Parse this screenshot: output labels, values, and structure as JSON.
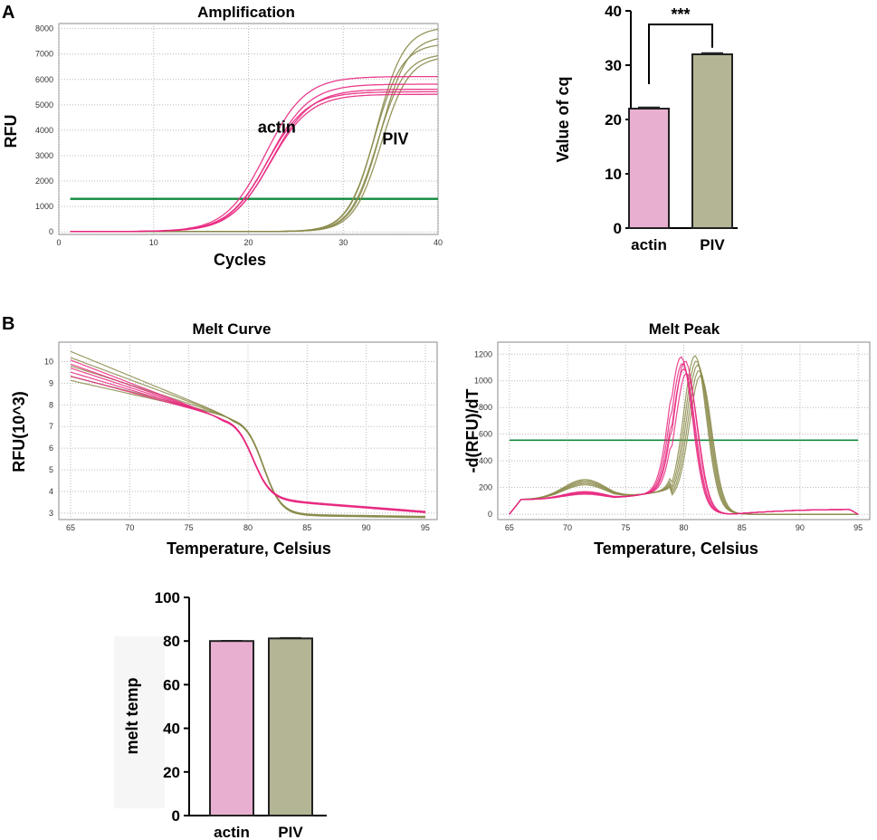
{
  "panels": {
    "a": "A",
    "b": "B"
  },
  "colors": {
    "actin_line": "#e8277f",
    "piv_line": "#8a8a4a",
    "threshold": "#0f8a3c",
    "actin_bar": "#e9afd1",
    "piv_bar": "#b4b595",
    "grid": "#b8b8b8"
  },
  "chart_data": [
    {
      "id": "amplification",
      "type": "line",
      "title": "Amplification",
      "xlabel": "Cycles",
      "ylabel": "RFU",
      "xlim": [
        0,
        40
      ],
      "ylim": [
        -100,
        8200
      ],
      "xticks": [
        0,
        10,
        20,
        30,
        40
      ],
      "yticks": [
        0,
        1000,
        2000,
        3000,
        4000,
        5000,
        6000,
        7000,
        8000
      ],
      "threshold": 1300,
      "annotations": [
        {
          "text": "actin",
          "x": 23,
          "y": 3900
        },
        {
          "text": "PIV",
          "x": 35.5,
          "y": 3450
        }
      ],
      "series": [
        {
          "name": "actin",
          "color": "#e8277f",
          "curves": [
            {
              "midpoint": 22.3,
              "plateau": 5400
            },
            {
              "midpoint": 22.0,
              "plateau": 5500
            },
            {
              "midpoint": 22.4,
              "plateau": 5600
            },
            {
              "midpoint": 22.2,
              "plateau": 5800
            },
            {
              "midpoint": 21.8,
              "plateau": 6100
            }
          ]
        },
        {
          "name": "PIV",
          "color": "#8a8a4a",
          "curves": [
            {
              "midpoint": 33.6,
              "plateau": 7000
            },
            {
              "midpoint": 33.3,
              "plateau": 7400
            },
            {
              "midpoint": 33.9,
              "plateau": 7700
            },
            {
              "midpoint": 33.5,
              "plateau": 8050
            },
            {
              "midpoint": 34.0,
              "plateau": 6900
            }
          ]
        }
      ]
    },
    {
      "id": "cq-bars",
      "type": "bar",
      "categories": [
        "actin",
        "PIV"
      ],
      "values": [
        22,
        32
      ],
      "errors": [
        0.2,
        0.2
      ],
      "ylabel": "Value of cq",
      "ylim": [
        0,
        40
      ],
      "yticks": [
        0,
        10,
        20,
        30,
        40
      ],
      "significance": "***"
    },
    {
      "id": "melt-curve",
      "type": "line",
      "title": "Melt Curve",
      "xlabel": "Temperature, Celsius",
      "ylabel": "RFU(10^3)",
      "xlim": [
        64,
        96
      ],
      "ylim": [
        2.7,
        10.9
      ],
      "xticks": [
        65,
        70,
        75,
        80,
        85,
        90,
        95
      ],
      "yticks": [
        3,
        4,
        5,
        6,
        7,
        8,
        9,
        10
      ],
      "series": [
        {
          "name": "actin",
          "color": "#e8277f",
          "start_values": [
            10.1,
            9.9,
            9.7,
            9.5,
            9.3
          ],
          "tm": 80.4,
          "end_value": 3.05
        },
        {
          "name": "PIV",
          "color": "#8a8a4a",
          "start_values": [
            10.5,
            10.2,
            9.8,
            9.3,
            9.1
          ],
          "tm": 81.3,
          "end_value": 2.82
        }
      ]
    },
    {
      "id": "melt-peak",
      "type": "line",
      "title": "Melt Peak",
      "xlabel": "Temperature, Celsius",
      "ylabel": "-d(RFU)/dT",
      "xlim": [
        64,
        96
      ],
      "ylim": [
        -40,
        1290
      ],
      "xticks": [
        65,
        70,
        75,
        80,
        85,
        90,
        95
      ],
      "yticks": [
        0,
        200,
        400,
        600,
        800,
        1000,
        1200
      ],
      "threshold": 555,
      "series": [
        {
          "name": "actin",
          "color": "#e8277f",
          "peak_temp": 80.0,
          "peak_values": [
            1220,
            1170,
            1130,
            1190,
            1100
          ]
        },
        {
          "name": "PIV",
          "color": "#8a8a4a",
          "peak_temp": 81.2,
          "peak_values": [
            1230,
            1190,
            1160,
            1120,
            1080
          ]
        }
      ]
    },
    {
      "id": "melt-temp-bars",
      "type": "bar",
      "categories": [
        "actin",
        "PIV"
      ],
      "values": [
        80,
        81.2
      ],
      "errors": [
        0.1,
        0.2
      ],
      "ylabel": "melt temp",
      "ylim": [
        0,
        100
      ],
      "yticks": [
        0,
        20,
        40,
        60,
        80,
        100
      ]
    }
  ]
}
